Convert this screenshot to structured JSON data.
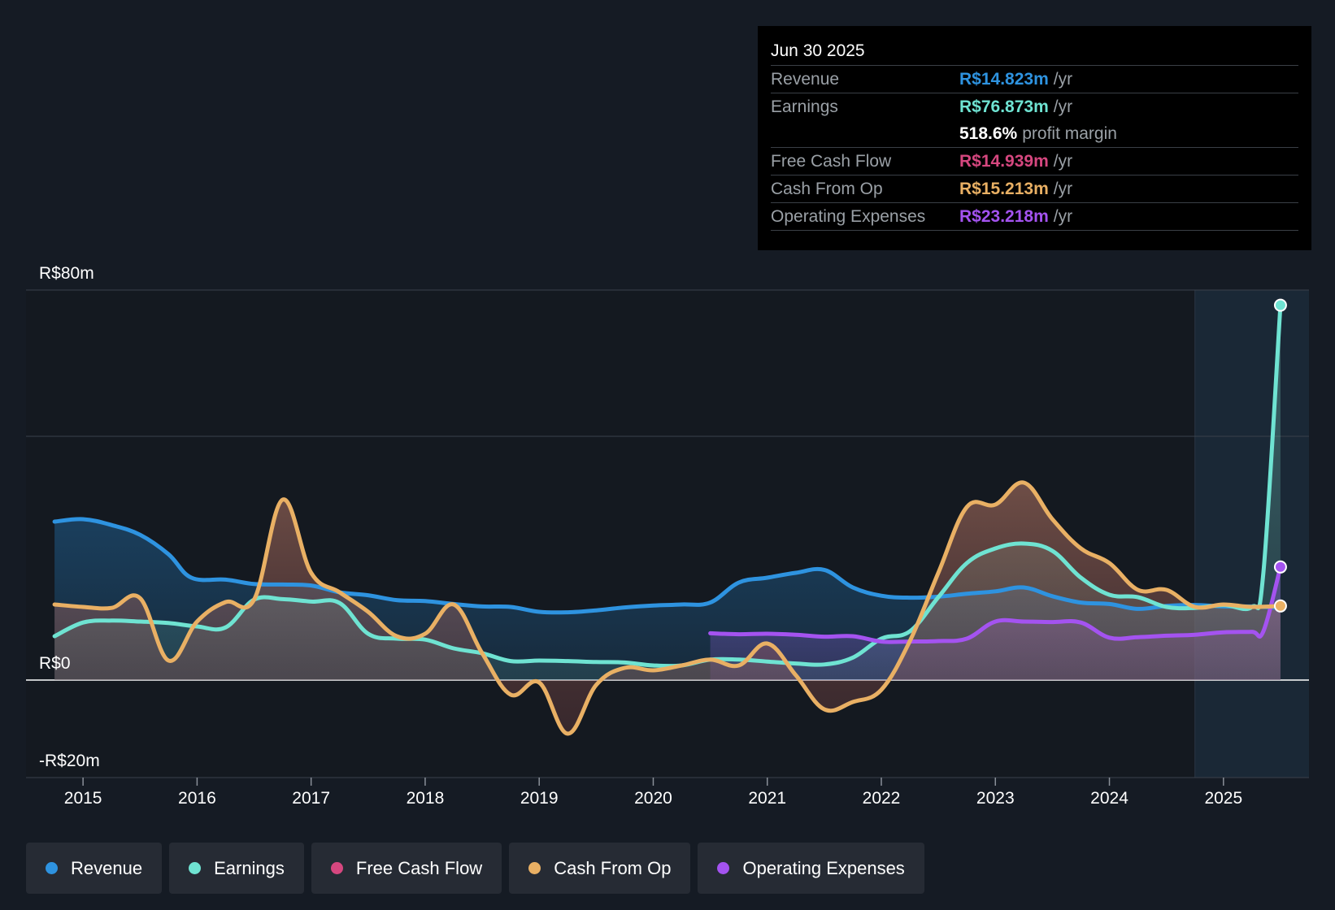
{
  "tooltip": {
    "date": "Jun 30 2025",
    "rows": [
      {
        "label": "Revenue",
        "value": "R$14.823m",
        "unit": "/yr",
        "color": "#2e93e0"
      },
      {
        "label": "Earnings",
        "value": "R$76.873m",
        "unit": "/yr",
        "color": "#6fe3d2"
      },
      {
        "label": "",
        "value": "518.6%",
        "unit": "profit margin",
        "color": "#ffffff"
      },
      {
        "label": "Free Cash Flow",
        "value": "R$14.939m",
        "unit": "/yr",
        "color": "#d6477f"
      },
      {
        "label": "Cash From Op",
        "value": "R$15.213m",
        "unit": "/yr",
        "color": "#e9b064"
      },
      {
        "label": "Operating Expenses",
        "value": "R$23.218m",
        "unit": "/yr",
        "color": "#a453f0"
      }
    ]
  },
  "legend": [
    {
      "label": "Revenue",
      "color": "#2e93e0"
    },
    {
      "label": "Earnings",
      "color": "#6fe3d2"
    },
    {
      "label": "Free Cash Flow",
      "color": "#d6477f"
    },
    {
      "label": "Cash From Op",
      "color": "#e9b064"
    },
    {
      "label": "Operating Expenses",
      "color": "#a453f0"
    }
  ],
  "chart_data": {
    "type": "area",
    "title": "",
    "xlabel": "",
    "ylabel": "",
    "ylim": [
      -20,
      80
    ],
    "xlim": [
      2014.5,
      2025.75
    ],
    "y_tick_labels": [
      "R$80m",
      "R$0",
      "-R$20m"
    ],
    "y_tick_values": [
      80,
      0,
      -20
    ],
    "gridlines": [
      80,
      50,
      0,
      -20
    ],
    "x_tick_labels": [
      "2015",
      "2016",
      "2017",
      "2018",
      "2019",
      "2020",
      "2021",
      "2022",
      "2023",
      "2024",
      "2025"
    ],
    "x_tick_values": [
      2015,
      2016,
      2017,
      2018,
      2019,
      2020,
      2021,
      2022,
      2023,
      2024,
      2025
    ],
    "forecast_region_start": 2024.75,
    "series": [
      {
        "name": "Revenue",
        "color": "#2e93e0",
        "x": [
          2014.75,
          2015.0,
          2015.25,
          2015.5,
          2015.75,
          2015.95,
          2016.25,
          2016.5,
          2016.75,
          2017.0,
          2017.25,
          2017.5,
          2017.75,
          2018.0,
          2018.25,
          2018.5,
          2018.75,
          2019.0,
          2019.25,
          2019.5,
          2019.75,
          2020.0,
          2020.25,
          2020.5,
          2020.75,
          2021.0,
          2021.25,
          2021.5,
          2021.75,
          2022.0,
          2022.25,
          2022.5,
          2022.75,
          2023.0,
          2023.25,
          2023.5,
          2023.75,
          2024.0,
          2024.25,
          2024.5,
          2024.75,
          2025.0,
          2025.25,
          2025.5
        ],
        "values": [
          32.5,
          33.0,
          31.8,
          29.8,
          25.8,
          21.0,
          20.6,
          19.7,
          19.6,
          19.4,
          18.0,
          17.4,
          16.4,
          16.2,
          15.6,
          15.1,
          15.0,
          14.0,
          13.9,
          14.3,
          14.9,
          15.3,
          15.5,
          15.9,
          20.0,
          21.0,
          22.0,
          22.6,
          19.0,
          17.3,
          16.9,
          17.1,
          17.7,
          18.2,
          19.0,
          17.2,
          15.9,
          15.6,
          14.6,
          15.2,
          15.4,
          15.1,
          15.1,
          14.8
        ]
      },
      {
        "name": "Earnings",
        "color": "#6fe3d2",
        "x": [
          2014.75,
          2015.0,
          2015.25,
          2015.5,
          2015.75,
          2016.0,
          2016.25,
          2016.5,
          2016.75,
          2017.0,
          2017.25,
          2017.5,
          2017.75,
          2018.0,
          2018.25,
          2018.5,
          2018.75,
          2019.0,
          2019.25,
          2019.5,
          2019.75,
          2020.0,
          2020.25,
          2020.5,
          2020.75,
          2021.0,
          2021.25,
          2021.5,
          2021.75,
          2022.0,
          2022.25,
          2022.5,
          2022.75,
          2023.0,
          2023.25,
          2023.5,
          2023.75,
          2024.0,
          2024.25,
          2024.5,
          2024.75,
          2025.0,
          2025.25,
          2025.35,
          2025.5
        ],
        "values": [
          9.0,
          11.8,
          12.2,
          12.0,
          11.7,
          11.0,
          10.8,
          16.5,
          16.6,
          16.1,
          15.8,
          9.5,
          8.5,
          8.3,
          6.5,
          5.5,
          3.9,
          4.0,
          3.9,
          3.7,
          3.6,
          3.0,
          3.0,
          4.2,
          4.2,
          3.8,
          3.4,
          3.2,
          4.6,
          8.5,
          10.0,
          17.0,
          24.0,
          27.0,
          28.0,
          26.5,
          21.0,
          17.5,
          17.0,
          15.0,
          14.8,
          15.4,
          15.0,
          22.0,
          76.9
        ]
      },
      {
        "name": "Free Cash Flow",
        "color": "#d6477f",
        "x": [
          2014.75,
          2015.0,
          2015.25,
          2015.5,
          2015.75,
          2016.0,
          2016.25,
          2016.5,
          2016.75,
          2017.0,
          2017.25,
          2017.5,
          2017.75,
          2018.0,
          2018.25,
          2018.5,
          2018.75,
          2019.0,
          2019.25,
          2019.5,
          2019.75,
          2020.0,
          2020.25,
          2020.5,
          2020.75,
          2021.0,
          2021.25,
          2021.5,
          2021.75,
          2022.0,
          2022.25,
          2022.5,
          2022.75,
          2023.0,
          2023.25,
          2023.5,
          2023.75,
          2024.0,
          2024.25,
          2024.5,
          2024.75,
          2025.0,
          2025.25,
          2025.5
        ],
        "values": [
          15.5,
          15.0,
          14.8,
          16.8,
          4.0,
          12.0,
          16.0,
          16.5,
          37.0,
          22.0,
          18.0,
          14.0,
          9.0,
          9.5,
          15.5,
          5.5,
          -3.0,
          -0.5,
          -11.0,
          -1.0,
          2.5,
          2.0,
          3.0,
          4.2,
          3.0,
          7.5,
          1.0,
          -6.0,
          -4.5,
          -2.0,
          8.0,
          22.0,
          35.5,
          36.0,
          40.5,
          33.0,
          27.0,
          24.0,
          18.5,
          18.5,
          15.0,
          15.5,
          15.0,
          14.9
        ]
      },
      {
        "name": "Cash From Op",
        "color": "#e9b064",
        "x": [
          2014.75,
          2015.0,
          2015.25,
          2015.5,
          2015.75,
          2016.0,
          2016.25,
          2016.5,
          2016.75,
          2017.0,
          2017.25,
          2017.5,
          2017.75,
          2018.0,
          2018.25,
          2018.5,
          2018.75,
          2019.0,
          2019.25,
          2019.5,
          2019.75,
          2020.0,
          2020.25,
          2020.5,
          2020.75,
          2021.0,
          2021.25,
          2021.5,
          2021.75,
          2022.0,
          2022.25,
          2022.5,
          2022.75,
          2023.0,
          2023.25,
          2023.5,
          2023.75,
          2024.0,
          2024.25,
          2024.5,
          2024.75,
          2025.0,
          2025.25,
          2025.5
        ],
        "values": [
          15.5,
          15.0,
          14.8,
          16.8,
          4.0,
          12.0,
          16.0,
          16.5,
          37.0,
          22.0,
          18.0,
          14.0,
          9.0,
          9.5,
          15.5,
          5.5,
          -3.0,
          -0.5,
          -11.0,
          -1.0,
          2.5,
          2.0,
          3.0,
          4.2,
          3.0,
          7.5,
          1.0,
          -6.0,
          -4.5,
          -2.0,
          8.0,
          22.0,
          35.5,
          36.0,
          40.5,
          33.0,
          27.0,
          24.0,
          18.5,
          18.5,
          15.0,
          15.5,
          15.0,
          15.2
        ]
      },
      {
        "name": "Operating Expenses",
        "color": "#a453f0",
        "x": [
          2020.5,
          2020.75,
          2021.0,
          2021.25,
          2021.5,
          2021.75,
          2022.0,
          2022.25,
          2022.5,
          2022.75,
          2023.0,
          2023.25,
          2023.5,
          2023.75,
          2024.0,
          2024.25,
          2024.5,
          2024.75,
          2025.0,
          2025.25,
          2025.35,
          2025.5
        ],
        "values": [
          9.6,
          9.4,
          9.5,
          9.3,
          8.9,
          9.0,
          7.9,
          7.9,
          8.0,
          8.5,
          12.0,
          12.0,
          11.9,
          11.8,
          8.7,
          8.8,
          9.1,
          9.3,
          9.8,
          9.9,
          10.0,
          23.2
        ]
      }
    ]
  }
}
